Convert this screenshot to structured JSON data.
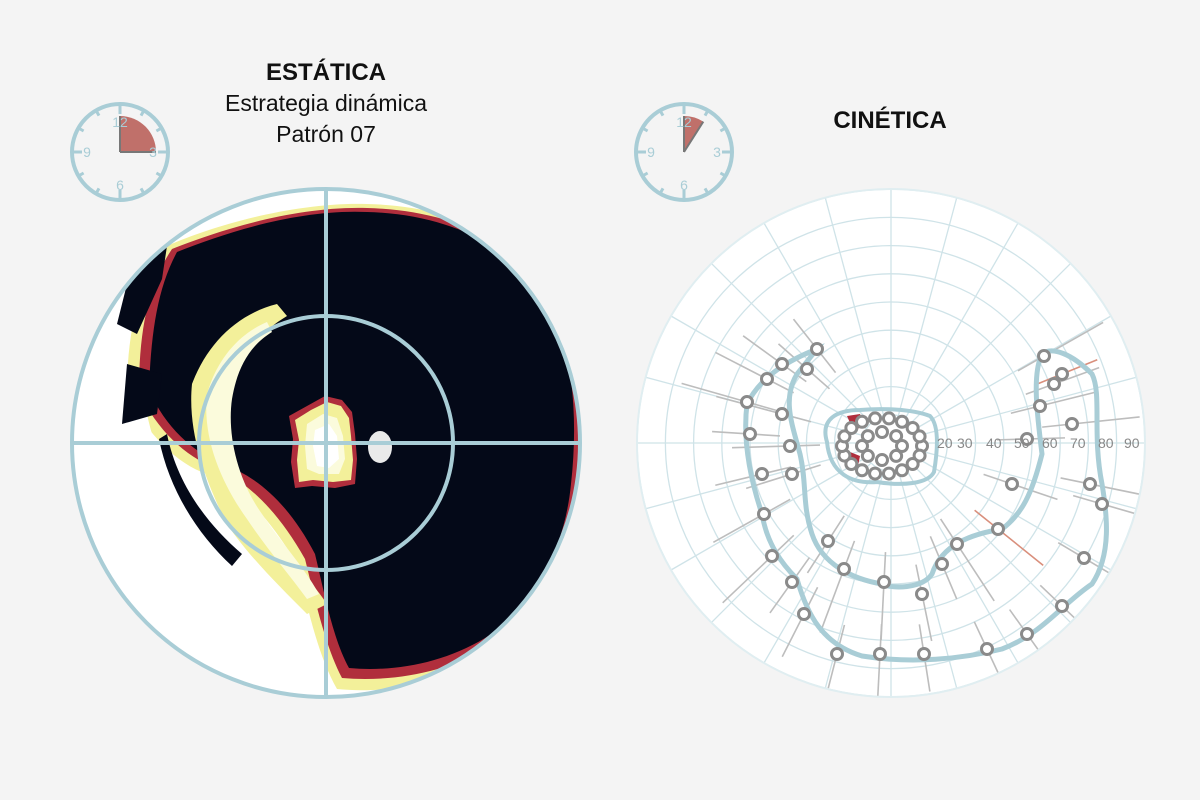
{
  "static_panel": {
    "title": "ESTÁTICA",
    "strategy": "Estrategia dinámica",
    "pattern": "Patrón 07",
    "clock": {
      "labels": [
        "12",
        "3",
        "6",
        "9"
      ],
      "elapsed_fraction": 0.25
    }
  },
  "kinetic_panel": {
    "title": "CINÉTICA",
    "clock": {
      "labels": [
        "12",
        "3",
        "6",
        "9"
      ],
      "elapsed_fraction": 0.09
    },
    "scale_labels": [
      "20",
      "30",
      "40",
      "50",
      "60",
      "70",
      "80",
      "90"
    ]
  },
  "colors": {
    "clock_ring": "#a9cdd6",
    "clock_sector": "#c0706a",
    "field_ring": "#a9cdd6",
    "dark_area": "#040918",
    "isopter": "#a9cdd6",
    "vector_normal": "#bdbdbd",
    "vector_highlight": "#d98f7c"
  }
}
